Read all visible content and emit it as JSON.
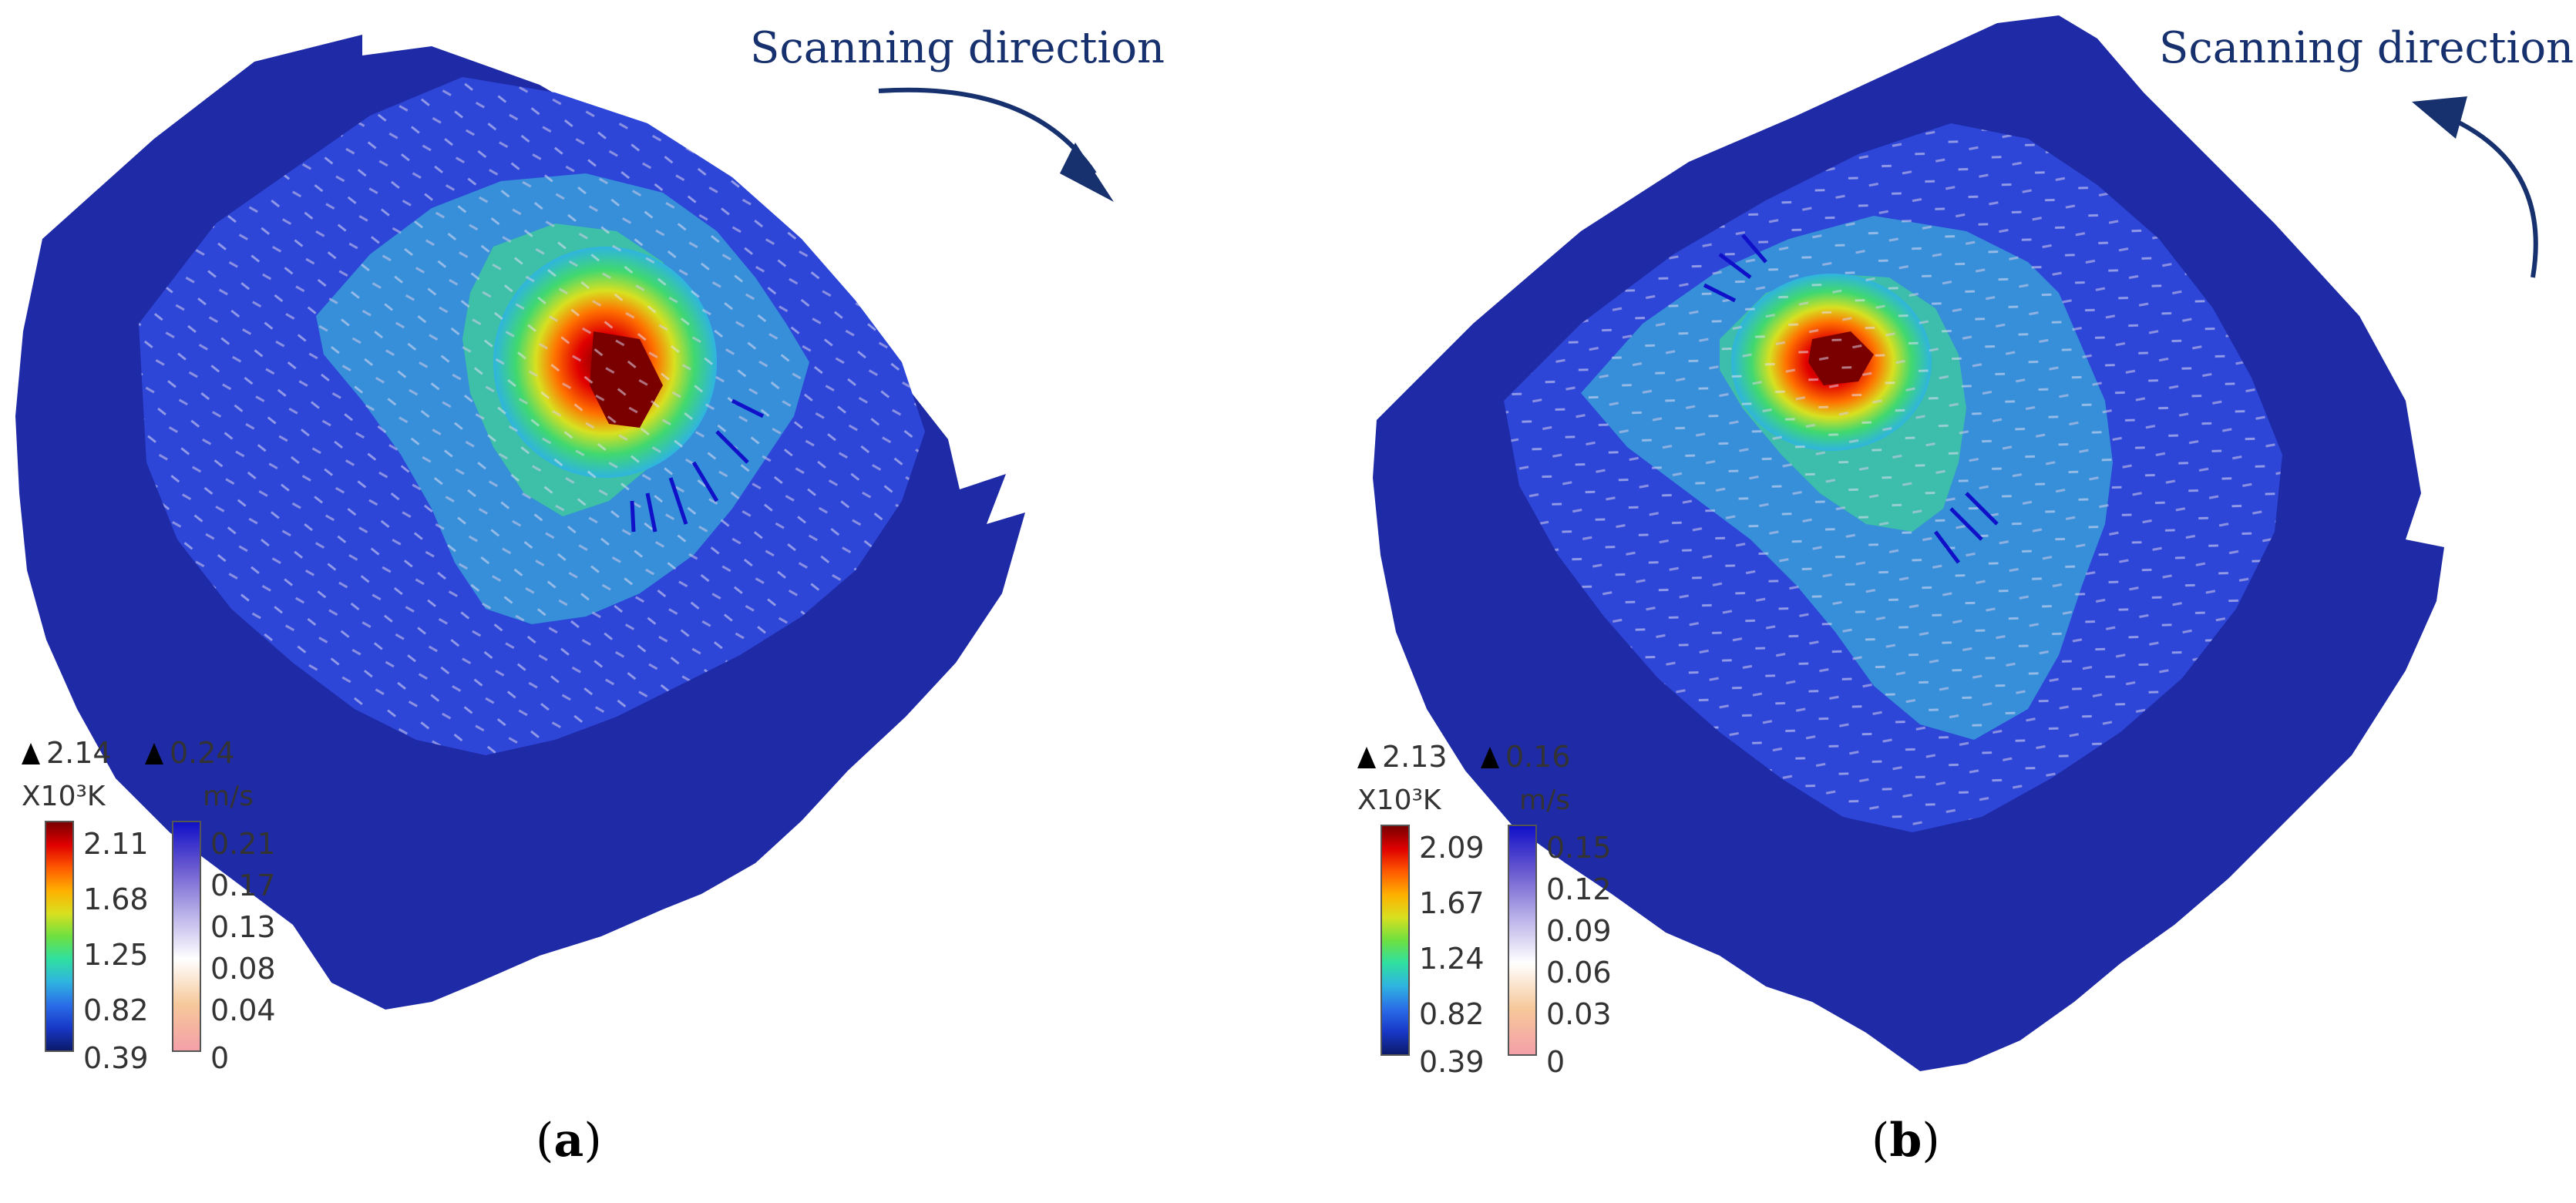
{
  "figure": {
    "scan_label": "Scanning direction",
    "colors": {
      "temp_scale": [
        "#0b1a6b",
        "#1838c8",
        "#2a6ee8",
        "#2fb4e0",
        "#2fe0a0",
        "#6ee040",
        "#d8e020",
        "#ffb000",
        "#ff5a00",
        "#e00000",
        "#7a0000"
      ],
      "vel_scale": [
        "#f4a0a8",
        "#f6c89a",
        "#ffffff",
        "#b8b0e8",
        "#6a5ad0",
        "#1010c8"
      ],
      "arrow": "#17306e"
    }
  },
  "panels": [
    {
      "id": "a",
      "caption_letter": "a",
      "scan_direction": "clockwise",
      "temperature_legend": {
        "max": "2.14",
        "unit": "X10³K",
        "ticks": [
          "2.11",
          "1.68",
          "1.25",
          "0.82",
          "0.39"
        ]
      },
      "velocity_legend": {
        "max": "0.24",
        "unit": "m/s",
        "ticks": [
          "0.21",
          "0.17",
          "0.13",
          "0.08",
          "0.04",
          "0"
        ]
      }
    },
    {
      "id": "b",
      "caption_letter": "b",
      "scan_direction": "counter-clockwise",
      "temperature_legend": {
        "max": "2.13",
        "unit": "X10³K",
        "ticks": [
          "2.09",
          "1.67",
          "1.24",
          "0.82",
          "0.39"
        ]
      },
      "velocity_legend": {
        "max": "0.16",
        "unit": "m/s",
        "ticks": [
          "0.15",
          "0.12",
          "0.09",
          "0.06",
          "0.03",
          "0"
        ]
      }
    }
  ]
}
